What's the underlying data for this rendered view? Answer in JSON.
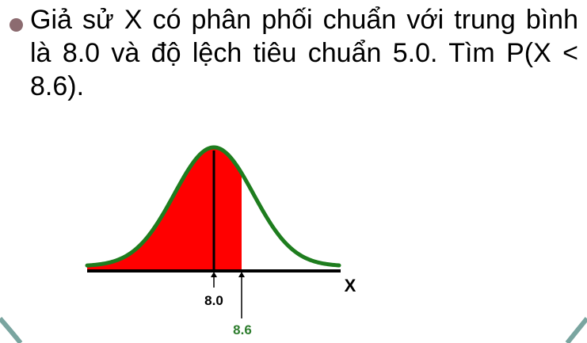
{
  "bullet": {
    "text": "Giả sử X có phân phối chuẩn với trung bình là 8.0 và độ lệch tiêu chuẩn 5.0. Tìm P(X < 8.6)."
  },
  "figure": {
    "axis_label": "X",
    "mean_label": "8.0",
    "value_label": "8.6",
    "colors": {
      "curve": "#1e7d1e",
      "shaded_area": "#ff0000",
      "axis": "#000000",
      "value_label": "#2e7d2e",
      "bullet": "#8c6b70",
      "frame_border": "#7aa5a0"
    }
  }
}
